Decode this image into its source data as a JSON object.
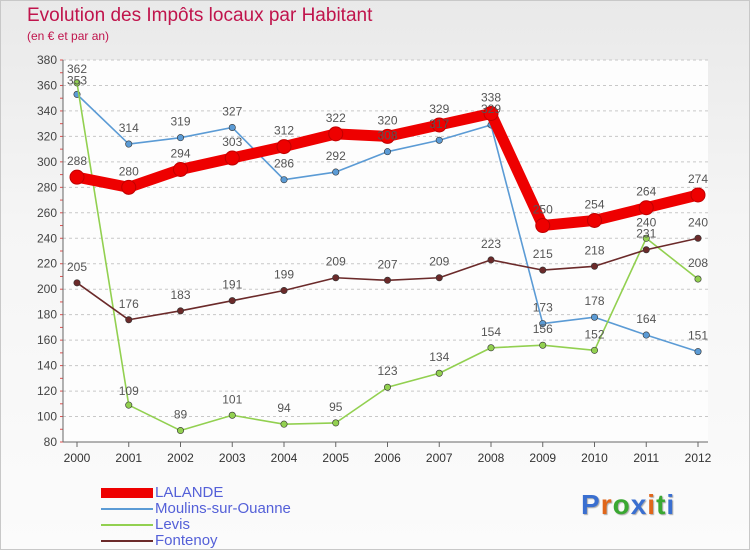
{
  "header": {
    "title": "Evolution des Impôts locaux par Habitant",
    "subtitle": "(en € et par an)"
  },
  "brand": {
    "text": "Proxiti",
    "letters": [
      {
        "char": "P",
        "color": "#3a6fd0"
      },
      {
        "char": "r",
        "color": "#e0661a"
      },
      {
        "char": "o",
        "color": "#3aa832"
      },
      {
        "char": "x",
        "color": "#3a6fd0"
      },
      {
        "char": "i",
        "color": "#e0661a"
      },
      {
        "char": "t",
        "color": "#3aa832"
      },
      {
        "char": "i",
        "color": "#3a6fd0"
      }
    ]
  },
  "chart_data": {
    "type": "line",
    "title": "Evolution des Impôts locaux par Habitant",
    "subtitle": "(en € et par an)",
    "x": [
      "2000",
      "2001",
      "2002",
      "2003",
      "2004",
      "2005",
      "2006",
      "2007",
      "2008",
      "2009",
      "2010",
      "2011",
      "2012"
    ],
    "ylim": [
      80,
      380
    ],
    "yticks": [
      80,
      100,
      120,
      140,
      160,
      180,
      200,
      220,
      240,
      260,
      280,
      300,
      320,
      340,
      360,
      380
    ],
    "xlabel": "",
    "ylabel": "",
    "grid": "horizontal dashed",
    "legend_position": "bottom-left",
    "series": [
      {
        "name": "LALANDE",
        "color": "#ee0000",
        "values": [
          288,
          280,
          294,
          303,
          312,
          322,
          320,
          329,
          338,
          250,
          254,
          264,
          274
        ]
      },
      {
        "name": "Moulins-sur-Ouanne",
        "color": "#5b9bd5",
        "values": [
          353,
          314,
          319,
          327,
          286,
          292,
          308,
          317,
          329,
          173,
          178,
          164,
          151
        ]
      },
      {
        "name": "Levis",
        "color": "#92d050",
        "values": [
          362,
          109,
          89,
          101,
          94,
          95,
          123,
          134,
          154,
          156,
          152,
          240,
          208
        ]
      },
      {
        "name": "Fontenoy",
        "color": "#6b2a2a",
        "values": [
          205,
          176,
          183,
          191,
          199,
          209,
          207,
          209,
          223,
          215,
          218,
          231,
          240
        ]
      }
    ]
  }
}
